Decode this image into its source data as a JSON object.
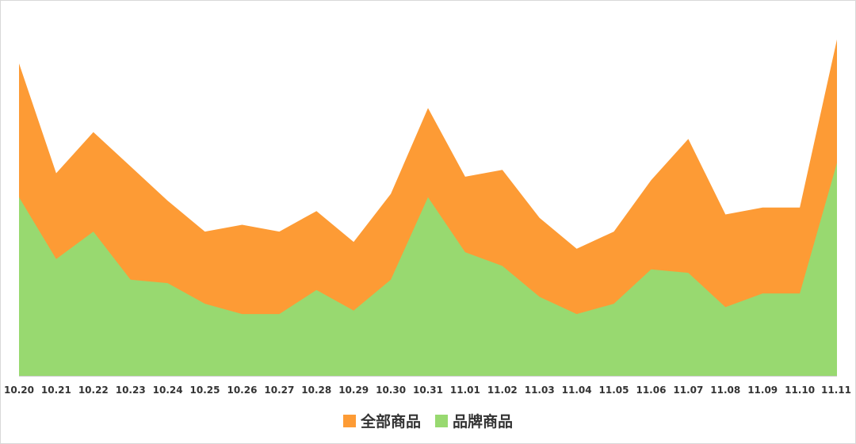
{
  "chart_data": {
    "type": "area",
    "stacked": false,
    "categories": [
      "10.20",
      "10.21",
      "10.22",
      "10.23",
      "10.24",
      "10.25",
      "10.26",
      "10.27",
      "10.28",
      "10.29",
      "10.30",
      "10.31",
      "11.01",
      "11.02",
      "11.03",
      "11.04",
      "11.05",
      "11.06",
      "11.07",
      "11.08",
      "11.09",
      "11.10",
      "11.11"
    ],
    "series": [
      {
        "name": "全部商品",
        "color": "#fd9b35",
        "values": [
          91,
          59,
          71,
          61,
          51,
          42,
          44,
          42,
          48,
          39,
          53,
          78,
          58,
          60,
          46,
          37,
          42,
          57,
          69,
          47,
          49,
          49,
          98
        ]
      },
      {
        "name": "品牌商品",
        "color": "#98d970",
        "values": [
          52,
          34,
          42,
          28,
          27,
          21,
          18,
          18,
          25,
          19,
          28,
          52,
          36,
          32,
          23,
          18,
          21,
          31,
          30,
          20,
          24,
          24,
          62
        ]
      }
    ],
    "xlabel": "",
    "ylabel": "",
    "ylim": [
      0,
      100
    ],
    "grid": false,
    "y_axis_labels_shown": false,
    "legend_position": "bottom-center"
  }
}
